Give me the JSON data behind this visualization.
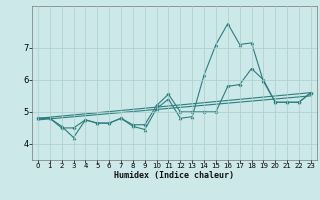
{
  "xlabel": "Humidex (Indice chaleur)",
  "bg_color": "#cce8e8",
  "grid_color": "#aacece",
  "line_color": "#2e7d7d",
  "xlim": [
    -0.5,
    23.5
  ],
  "ylim": [
    3.5,
    8.3
  ],
  "yticks": [
    4,
    5,
    6,
    7
  ],
  "xticks": [
    0,
    1,
    2,
    3,
    4,
    5,
    6,
    7,
    8,
    9,
    10,
    11,
    12,
    13,
    14,
    15,
    16,
    17,
    18,
    19,
    20,
    21,
    22,
    23
  ],
  "series1_x": [
    0,
    1,
    2,
    3,
    4,
    5,
    6,
    7,
    8,
    9,
    10,
    11,
    12,
    13,
    14,
    15,
    16,
    17,
    18,
    19,
    20,
    21,
    22,
    23
  ],
  "series1_y": [
    4.8,
    4.8,
    4.55,
    4.2,
    4.75,
    4.65,
    4.65,
    4.8,
    4.55,
    4.45,
    5.1,
    5.4,
    4.8,
    4.85,
    6.15,
    7.1,
    7.75,
    7.1,
    7.15,
    5.95,
    5.3,
    5.3,
    5.3,
    5.6
  ],
  "series2_x": [
    0,
    1,
    2,
    3,
    4,
    5,
    6,
    7,
    8,
    9,
    10,
    11,
    12,
    13,
    14,
    15,
    16,
    17,
    18,
    19,
    20,
    21,
    22,
    23
  ],
  "series2_y": [
    4.8,
    4.8,
    4.5,
    4.5,
    4.75,
    4.65,
    4.65,
    4.8,
    4.6,
    4.6,
    5.2,
    5.55,
    5.0,
    5.0,
    5.0,
    5.0,
    5.8,
    5.85,
    6.35,
    6.0,
    5.3,
    5.3,
    5.3,
    5.6
  ],
  "line1_x": [
    0,
    23
  ],
  "line1_y": [
    4.8,
    5.6
  ],
  "line2_x": [
    0,
    23
  ],
  "line2_y": [
    4.75,
    5.5
  ]
}
